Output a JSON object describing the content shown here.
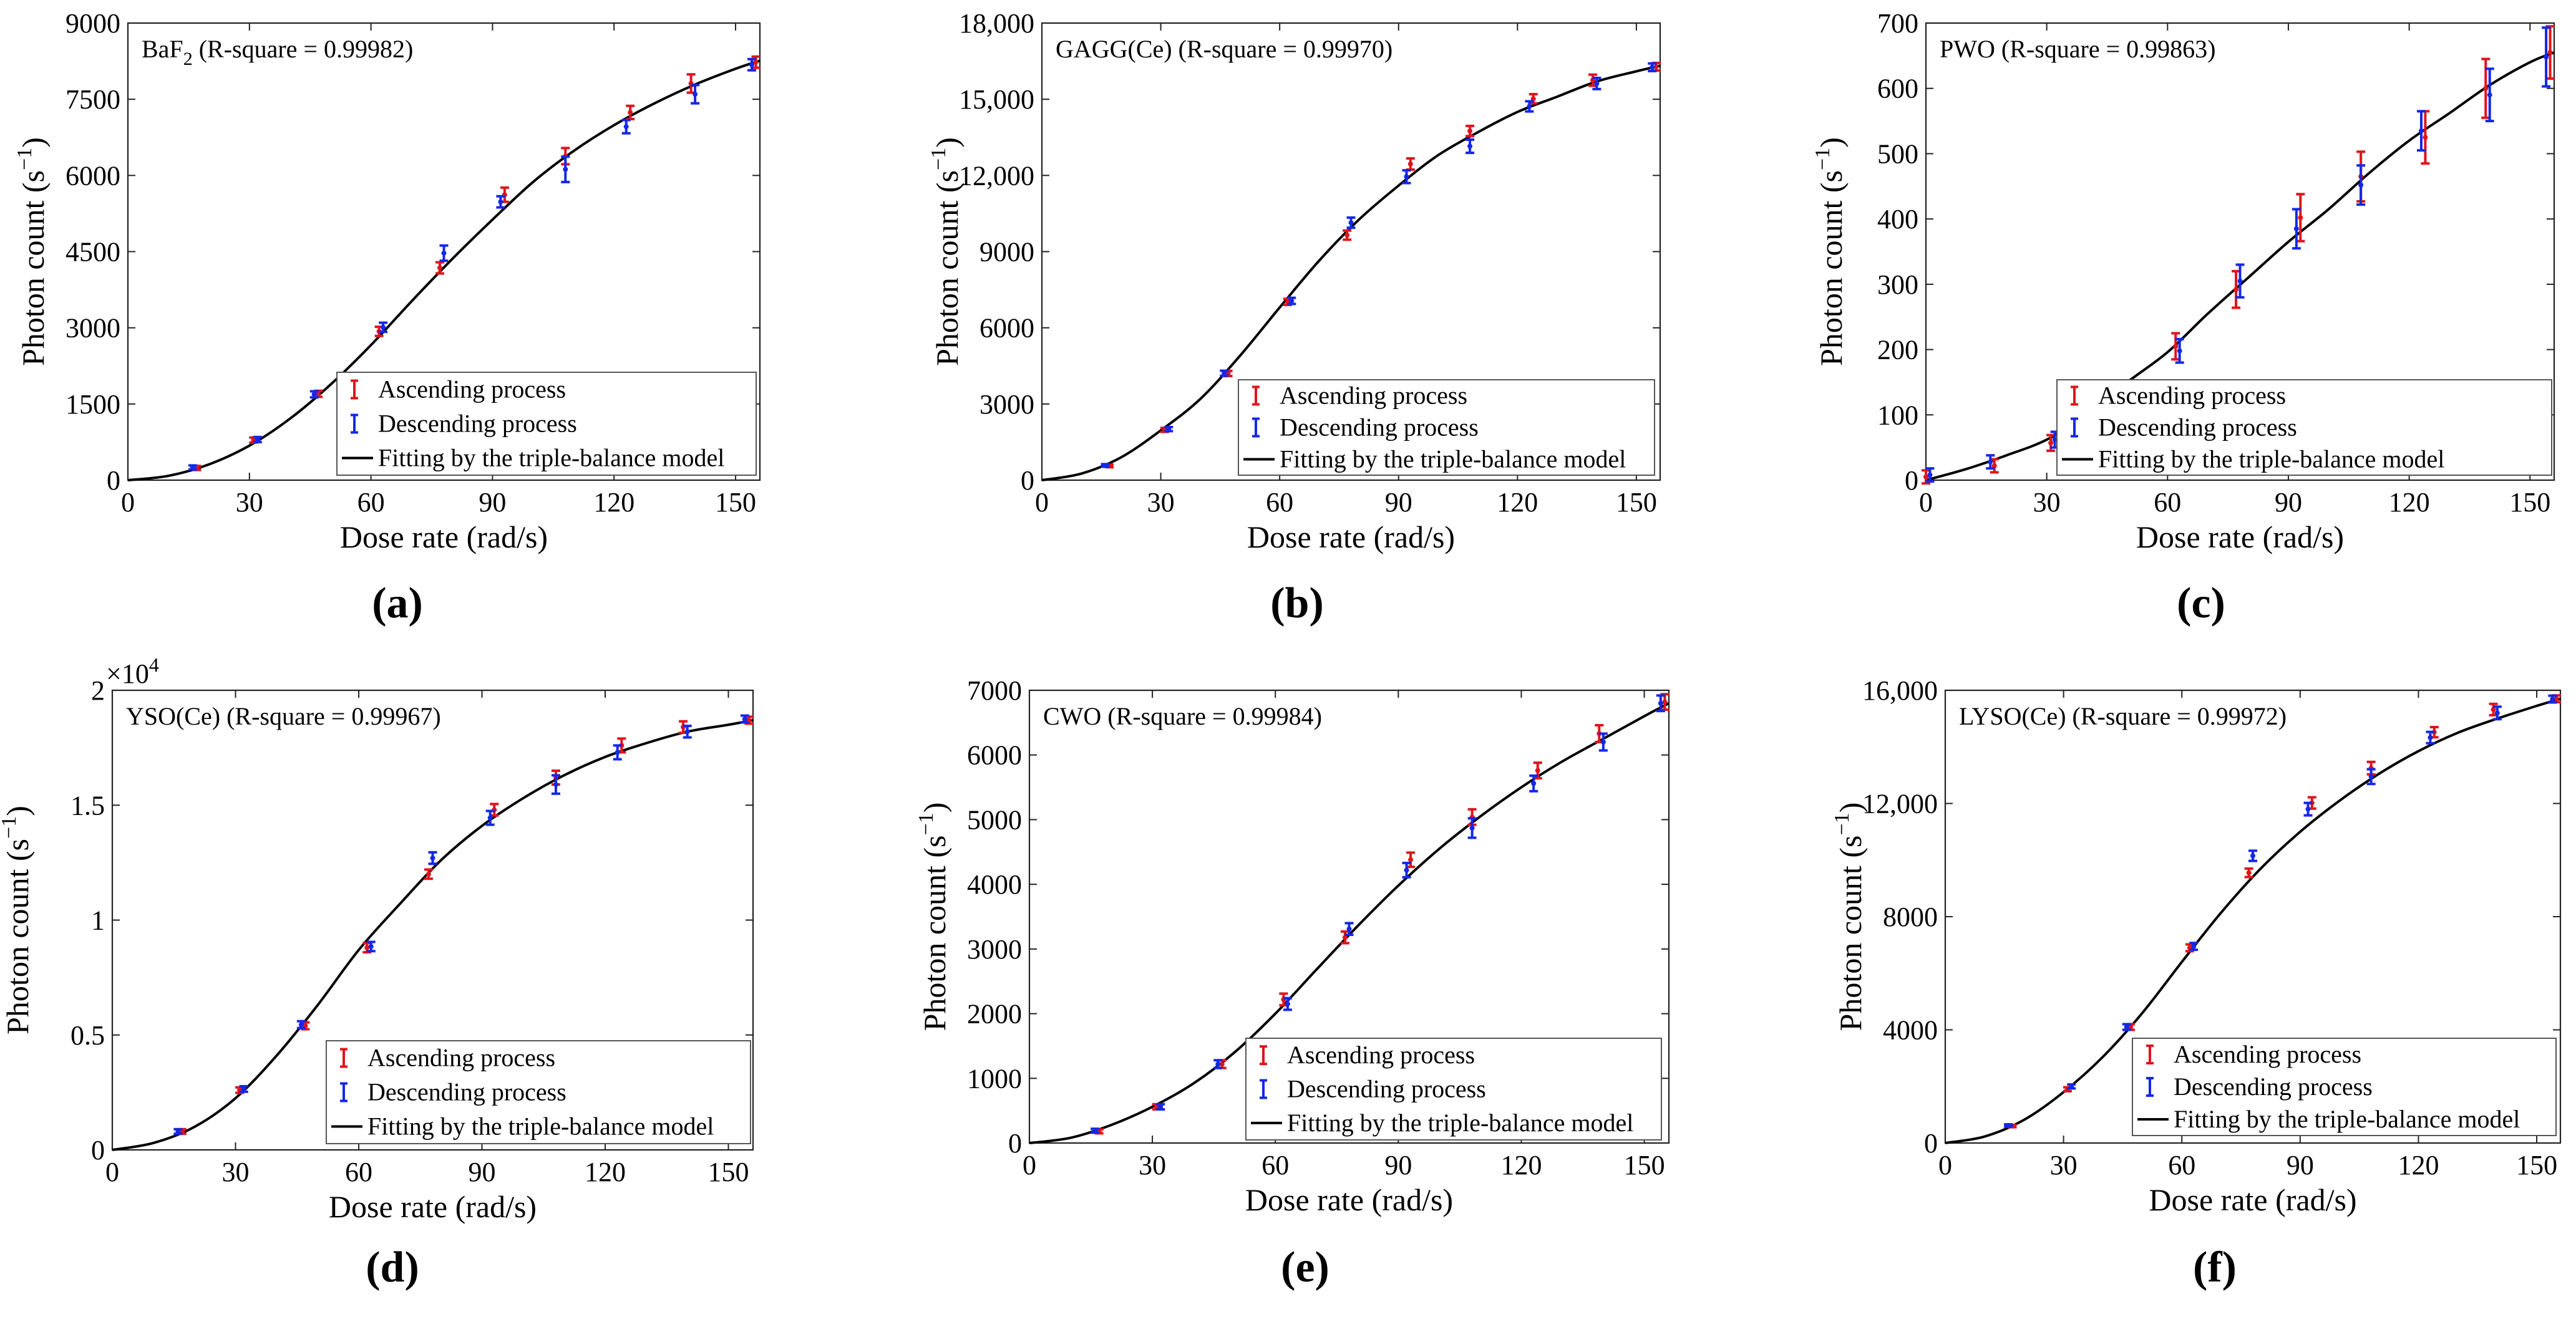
{
  "figure": {
    "legend_labels": {
      "ascending": "Ascending process",
      "descending": "Descending process",
      "fit": "Fitting by the triple-balance model"
    },
    "colors": {
      "ascending": "#e0141b",
      "descending": "#1428e6",
      "fit": "#000000",
      "axes": "#222222"
    }
  },
  "chart_data": [
    {
      "type": "line",
      "panel_label": "(a)",
      "material": "BaF",
      "material_sub": "2",
      "annotation_rest": " (R-square = 0.99982)",
      "xlabel": "Dose rate (rad/s)",
      "ylabel": "Photon count (s",
      "ylabel_sup": "−1",
      "ylabel_end": ")",
      "xlim": [
        0,
        156
      ],
      "ylim": [
        0,
        9000
      ],
      "xticks": [
        0,
        30,
        60,
        90,
        120,
        150
      ],
      "xtick_labels": [
        "0",
        "30",
        "60",
        "90",
        "120",
        "150"
      ],
      "yticks": [
        0,
        1500,
        3000,
        4500,
        6000,
        7500,
        9000
      ],
      "ytick_labels": [
        "0",
        "1500",
        "3000",
        "4500",
        "6000",
        "7500",
        "9000"
      ],
      "multiplier": "",
      "series": [
        {
          "name": "Ascending process",
          "x": [
            17,
            31,
            47,
            62,
            77,
            93,
            108,
            124,
            139,
            155
          ],
          "y": [
            240,
            790,
            1700,
            2930,
            4180,
            5620,
            6380,
            7240,
            7810,
            8230
          ],
          "err": [
            40,
            50,
            60,
            90,
            110,
            140,
            160,
            130,
            180,
            110
          ]
        },
        {
          "name": "Descending process",
          "x": [
            16,
            32,
            46,
            63,
            78,
            92,
            108,
            123,
            140,
            154
          ],
          "y": [
            250,
            800,
            1690,
            3010,
            4470,
            5480,
            6120,
            6960,
            7600,
            8180
          ],
          "err": [
            40,
            50,
            60,
            90,
            150,
            110,
            250,
            130,
            180,
            110
          ]
        }
      ],
      "fit": {
        "x": [
          0,
          10,
          20,
          30,
          40,
          50,
          60,
          70,
          80,
          90,
          100,
          110,
          120,
          130,
          140,
          150,
          156
        ],
        "y": [
          0,
          85,
          310,
          680,
          1210,
          1880,
          2660,
          3520,
          4350,
          5130,
          5870,
          6480,
          6990,
          7420,
          7790,
          8100,
          8260
        ]
      }
    },
    {
      "type": "line",
      "panel_label": "(b)",
      "material": "GAGG(Ce)",
      "material_sub": "",
      "annotation_rest": " (R-square = 0.99970)",
      "xlabel": "Dose rate (rad/s)",
      "ylabel": "Photon count (s",
      "ylabel_sup": "−1",
      "ylabel_end": ")",
      "xlim": [
        0,
        156
      ],
      "ylim": [
        0,
        18000
      ],
      "xticks": [
        0,
        30,
        60,
        90,
        120,
        150
      ],
      "xtick_labels": [
        "0",
        "30",
        "60",
        "90",
        "120",
        "150"
      ],
      "yticks": [
        0,
        3000,
        6000,
        9000,
        12000,
        15000,
        18000
      ],
      "ytick_labels": [
        "0",
        "3000",
        "6000",
        "9000",
        "12,000",
        "15,000",
        "18,000"
      ],
      "multiplier": "",
      "series": [
        {
          "name": "Ascending process",
          "x": [
            17,
            31,
            47,
            62,
            77,
            93,
            108,
            124,
            139,
            155
          ],
          "y": [
            560,
            1980,
            4200,
            7020,
            9650,
            12450,
            13750,
            15020,
            15750,
            16280
          ],
          "err": [
            50,
            80,
            100,
            120,
            180,
            220,
            200,
            180,
            220,
            150
          ]
        },
        {
          "name": "Descending process",
          "x": [
            16,
            32,
            46,
            63,
            78,
            92,
            108,
            123,
            140,
            154
          ],
          "y": [
            580,
            2010,
            4210,
            7060,
            10140,
            11950,
            13150,
            14720,
            15620,
            16260
          ],
          "err": [
            50,
            80,
            100,
            120,
            200,
            250,
            260,
            200,
            220,
            150
          ]
        }
      ],
      "fit": {
        "x": [
          0,
          10,
          20,
          30,
          40,
          50,
          60,
          70,
          80,
          90,
          100,
          110,
          120,
          130,
          140,
          150,
          156
        ],
        "y": [
          0,
          260,
          900,
          1960,
          3200,
          4900,
          6800,
          8650,
          10260,
          11600,
          12800,
          13700,
          14500,
          15100,
          15700,
          16100,
          16320
        ]
      }
    },
    {
      "type": "line",
      "panel_label": "(c)",
      "material": "PWO",
      "material_sub": "",
      "annotation_rest": " (R-square = 0.99863)",
      "xlabel": "Dose rate (rad/s)",
      "ylabel": "Photon count (s",
      "ylabel_sup": "−1",
      "ylabel_end": ")",
      "xlim": [
        0,
        156
      ],
      "ylim": [
        0,
        700
      ],
      "xticks": [
        0,
        30,
        60,
        90,
        120,
        150
      ],
      "xtick_labels": [
        "0",
        "30",
        "60",
        "90",
        "120",
        "150"
      ],
      "yticks": [
        0,
        100,
        200,
        300,
        400,
        500,
        600,
        700
      ],
      "ytick_labels": [
        "0",
        "100",
        "200",
        "300",
        "400",
        "500",
        "600",
        "700"
      ],
      "multiplier": "",
      "series": [
        {
          "name": "Ascending process",
          "x": [
            0,
            17,
            31,
            47,
            62,
            77,
            93,
            108,
            124,
            139,
            155
          ],
          "y": [
            5,
            22,
            57,
            116,
            205,
            292,
            402,
            465,
            525,
            600,
            655
          ],
          "err": [
            10,
            10,
            12,
            15,
            20,
            28,
            36,
            38,
            40,
            45,
            40
          ]
        },
        {
          "name": "Descending process",
          "x": [
            1,
            16,
            32,
            46,
            63,
            78,
            92,
            108,
            123,
            140,
            154
          ],
          "y": [
            8,
            28,
            62,
            120,
            198,
            305,
            385,
            452,
            535,
            590,
            648
          ],
          "err": [
            10,
            10,
            12,
            15,
            18,
            25,
            30,
            30,
            30,
            40,
            45
          ]
        }
      ],
      "fit": {
        "x": [
          0,
          10,
          20,
          30,
          40,
          50,
          60,
          70,
          80,
          90,
          100,
          110,
          120,
          130,
          140,
          150,
          156
        ],
        "y": [
          0,
          17,
          38,
          62,
          100,
          150,
          196,
          255,
          310,
          365,
          415,
          470,
          520,
          562,
          605,
          640,
          655
        ]
      }
    },
    {
      "type": "line",
      "panel_label": "(d)",
      "material": "YSO(Ce)",
      "material_sub": "",
      "annotation_rest": " (R-square = 0.99967)",
      "xlabel": "Dose rate (rad/s)",
      "ylabel": "Photon count (s",
      "ylabel_sup": "−1",
      "ylabel_end": ")",
      "xlim": [
        0,
        156
      ],
      "ylim": [
        0,
        2.0
      ],
      "xticks": [
        0,
        30,
        60,
        90,
        120,
        150
      ],
      "xtick_labels": [
        "0",
        "30",
        "60",
        "90",
        "120",
        "150"
      ],
      "yticks": [
        0,
        0.5,
        1.0,
        1.5,
        2.0
      ],
      "ytick_labels": [
        "0",
        "0.5",
        "1",
        "1.5",
        "2"
      ],
      "multiplier": "×10",
      "multiplier_exp": "4",
      "series": [
        {
          "name": "Ascending process",
          "x": [
            17,
            31,
            47,
            62,
            77,
            93,
            108,
            124,
            139,
            155
          ],
          "y": [
            0.08,
            0.26,
            0.54,
            0.88,
            1.2,
            1.48,
            1.62,
            1.76,
            1.84,
            1.87
          ],
          "err": [
            0.01,
            0.012,
            0.015,
            0.02,
            0.02,
            0.025,
            0.03,
            0.03,
            0.025,
            0.015
          ]
        },
        {
          "name": "Descending process",
          "x": [
            16,
            32,
            46,
            63,
            78,
            92,
            108,
            123,
            140,
            154
          ],
          "y": [
            0.08,
            0.265,
            0.545,
            0.885,
            1.27,
            1.445,
            1.59,
            1.73,
            1.82,
            1.875
          ],
          "err": [
            0.01,
            0.012,
            0.015,
            0.02,
            0.025,
            0.03,
            0.04,
            0.03,
            0.025,
            0.015
          ]
        }
      ],
      "fit": {
        "x": [
          0,
          10,
          20,
          30,
          40,
          50,
          60,
          70,
          80,
          90,
          100,
          110,
          120,
          130,
          140,
          150,
          156
        ],
        "y": [
          0,
          0.03,
          0.1,
          0.225,
          0.41,
          0.63,
          0.87,
          1.07,
          1.26,
          1.41,
          1.53,
          1.63,
          1.71,
          1.77,
          1.82,
          1.85,
          1.87
        ]
      }
    },
    {
      "type": "line",
      "panel_label": "(e)",
      "material": "CWO",
      "material_sub": "",
      "annotation_rest": "  (R-square = 0.99984)",
      "xlabel": "Dose rate (rad/s)",
      "ylabel": "Photon count (s",
      "ylabel_sup": "−1",
      "ylabel_end": ")",
      "xlim": [
        0,
        156
      ],
      "ylim": [
        0,
        7000
      ],
      "xticks": [
        0,
        30,
        60,
        90,
        120,
        150
      ],
      "xtick_labels": [
        "0",
        "30",
        "60",
        "90",
        "120",
        "150"
      ],
      "yticks": [
        0,
        1000,
        2000,
        3000,
        4000,
        5000,
        6000,
        7000
      ],
      "ytick_labels": [
        "0",
        "1000",
        "2000",
        "3000",
        "4000",
        "5000",
        "6000",
        "7000"
      ],
      "multiplier": "",
      "series": [
        {
          "name": "Ascending process",
          "x": [
            17,
            31,
            47,
            62,
            77,
            93,
            108,
            124,
            139,
            155
          ],
          "y": [
            180,
            560,
            1220,
            2220,
            3180,
            4380,
            5040,
            5760,
            6330,
            6820
          ],
          "err": [
            30,
            40,
            60,
            90,
            90,
            110,
            120,
            120,
            130,
            120
          ]
        },
        {
          "name": "Descending process",
          "x": [
            16,
            32,
            46,
            63,
            78,
            92,
            108,
            123,
            140,
            154
          ],
          "y": [
            190,
            560,
            1220,
            2150,
            3310,
            4220,
            4870,
            5560,
            6200,
            6800
          ],
          "err": [
            30,
            40,
            60,
            90,
            90,
            110,
            150,
            120,
            130,
            120
          ]
        }
      ],
      "fit": {
        "x": [
          0,
          10,
          20,
          30,
          40,
          50,
          60,
          70,
          80,
          90,
          100,
          110,
          120,
          130,
          140,
          150,
          156
        ],
        "y": [
          0,
          80,
          280,
          560,
          920,
          1400,
          2000,
          2680,
          3350,
          3980,
          4550,
          5050,
          5500,
          5900,
          6250,
          6600,
          6800
        ]
      }
    },
    {
      "type": "line",
      "panel_label": "(f)",
      "material": "LYSO(Ce)",
      "material_sub": "",
      "annotation_rest": " (R-square = 0.99972)",
      "xlabel": "Dose rate (rad/s)",
      "ylabel": "Photon count (s",
      "ylabel_sup": "−1",
      "ylabel_end": ")",
      "xlim": [
        0,
        156
      ],
      "ylim": [
        0,
        16000
      ],
      "xticks": [
        0,
        30,
        60,
        90,
        120,
        150
      ],
      "xtick_labels": [
        "0",
        "30",
        "60",
        "90",
        "120",
        "150"
      ],
      "yticks": [
        0,
        4000,
        8000,
        12000,
        16000
      ],
      "ytick_labels": [
        "0",
        "4000",
        "8000",
        "12,000",
        "16,000"
      ],
      "multiplier": "",
      "series": [
        {
          "name": "Ascending process",
          "x": [
            17,
            31,
            47,
            62,
            77,
            93,
            108,
            124,
            139,
            155
          ],
          "y": [
            600,
            1900,
            4100,
            6900,
            9550,
            12020,
            13250,
            14520,
            15320,
            15700
          ],
          "err": [
            40,
            70,
            100,
            120,
            150,
            200,
            220,
            180,
            200,
            120
          ]
        },
        {
          "name": "Descending process",
          "x": [
            16,
            32,
            46,
            63,
            78,
            92,
            108,
            123,
            140,
            154
          ],
          "y": [
            620,
            2000,
            4100,
            6950,
            10150,
            11800,
            12950,
            14330,
            15200,
            15690
          ],
          "err": [
            40,
            70,
            100,
            120,
            180,
            220,
            260,
            200,
            220,
            120
          ]
        }
      ],
      "fit": {
        "x": [
          0,
          10,
          20,
          30,
          40,
          50,
          60,
          70,
          80,
          90,
          100,
          110,
          120,
          130,
          140,
          150,
          156
        ],
        "y": [
          0,
          230,
          820,
          1800,
          3050,
          4600,
          6400,
          8150,
          9700,
          11000,
          12100,
          13050,
          13850,
          14500,
          15000,
          15450,
          15700
        ]
      }
    }
  ]
}
